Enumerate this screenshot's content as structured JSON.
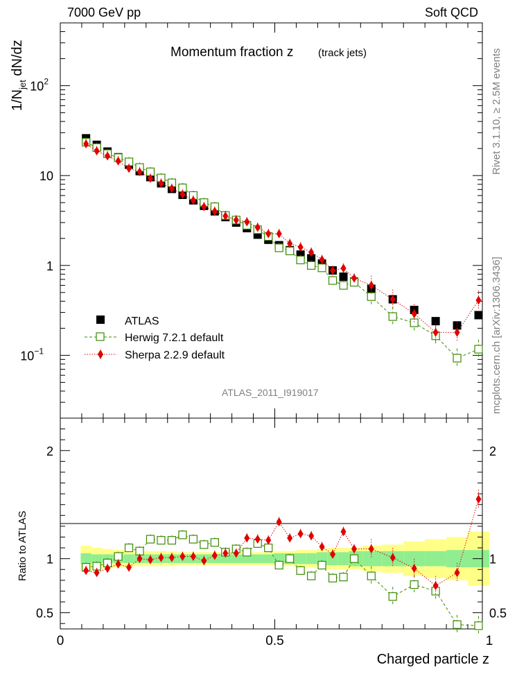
{
  "header": {
    "left": "7000 GeV pp",
    "right": "Soft QCD"
  },
  "side": {
    "rivet": "Rivet 3.1.10, ≥ 2.5M events",
    "mcplots": "mcplots.cern.ch [arXiv:1306.3436]"
  },
  "chart_data": [
    {
      "type": "scatter",
      "title": "Momentum fraction z",
      "subtitle": "(track jets)",
      "ylabel": "1/N_jet dN/dz",
      "yscale": "log",
      "ylim": [
        0.02,
        500
      ],
      "xlim": [
        0,
        1
      ],
      "yticks": [
        {
          "base": "10",
          "exp": "2",
          "value": 100
        },
        {
          "base": "10",
          "exp": "",
          "value": 10
        },
        {
          "base": "1",
          "exp": "",
          "value": 1
        },
        {
          "base": "10",
          "exp": "−1",
          "value": 0.1
        }
      ],
      "analysis_label": "ATLAS_2011_I919017",
      "legend_position": "bottom-left",
      "x": [
        0.06,
        0.085,
        0.11,
        0.135,
        0.16,
        0.185,
        0.21,
        0.235,
        0.26,
        0.285,
        0.31,
        0.335,
        0.36,
        0.385,
        0.41,
        0.435,
        0.46,
        0.485,
        0.51,
        0.535,
        0.56,
        0.585,
        0.61,
        0.635,
        0.66,
        0.685,
        0.725,
        0.775,
        0.825,
        0.875,
        0.925,
        0.975
      ],
      "series": [
        {
          "name": "ATLAS",
          "color": "#000000",
          "marker": "square-filled",
          "values": [
            26,
            22,
            18.5,
            16,
            13.2,
            11.2,
            9.6,
            8.2,
            7.1,
            6.1,
            5.3,
            4.6,
            4.0,
            3.45,
            3.0,
            2.6,
            2.2,
            1.93,
            1.68,
            1.48,
            1.32,
            1.2,
            1.05,
            0.88,
            0.75,
            0.66,
            0.55,
            0.42,
            0.32,
            0.24,
            0.215,
            0.28
          ]
        },
        {
          "name": "Herwig 7.2.1 default",
          "color": "#3a8a00",
          "marker": "square-open",
          "line": "dashed",
          "values": [
            23.5,
            20.5,
            17.5,
            15.8,
            14.2,
            12.3,
            11.0,
            9.4,
            8.3,
            7.3,
            6.0,
            5.0,
            4.5,
            3.6,
            3.2,
            2.8,
            2.5,
            2.1,
            1.57,
            1.45,
            1.15,
            1.0,
            0.94,
            0.68,
            0.6,
            0.65,
            0.45,
            0.27,
            0.23,
            0.165,
            0.093,
            0.117
          ]
        },
        {
          "name": "Sherpa 2.2.9 default",
          "color": "#e00000",
          "marker": "diamond-filled",
          "line": "dotted",
          "values": [
            22.5,
            18.8,
            16.5,
            14.5,
            12.0,
            11.0,
            9.3,
            8.2,
            7.2,
            6.2,
            5.3,
            4.5,
            4.0,
            3.55,
            3.2,
            3.05,
            2.65,
            2.25,
            2.25,
            1.75,
            1.6,
            1.4,
            1.16,
            0.88,
            0.93,
            0.72,
            0.6,
            0.42,
            0.29,
            0.18,
            0.18,
            0.41
          ]
        }
      ]
    },
    {
      "type": "scatter",
      "ylabel": "Ratio to ATLAS",
      "xlabel": "Charged particle z",
      "xlim": [
        0,
        1
      ],
      "ylim": [
        0.35,
        2.3
      ],
      "xticks": [
        "0",
        "0.5",
        "1"
      ],
      "yticks": [
        "0.5",
        "1",
        "2"
      ],
      "series": [
        {
          "name": "Herwig 7.2.1 default",
          "values": [
            0.92,
            0.93,
            0.96,
            1.02,
            1.1,
            1.07,
            1.18,
            1.17,
            1.17,
            1.22,
            1.18,
            1.13,
            1.15,
            1.06,
            1.09,
            1.06,
            1.14,
            1.1,
            0.94,
            1.0,
            0.89,
            0.84,
            0.94,
            0.82,
            0.83,
            1.0,
            0.84,
            0.65,
            0.76,
            0.7,
            0.39,
            0.38
          ]
        },
        {
          "name": "Sherpa 2.2.9 default",
          "values": [
            0.89,
            0.87,
            0.91,
            0.95,
            0.92,
            1.0,
            0.99,
            1.01,
            1.01,
            1.02,
            1.02,
            0.98,
            1.03,
            1.05,
            1.05,
            1.19,
            1.18,
            1.17,
            1.34,
            1.19,
            1.23,
            1.21,
            1.11,
            1.04,
            1.25,
            1.09,
            1.09,
            1.01,
            0.91,
            0.75,
            0.87,
            1.55
          ]
        }
      ],
      "band_inner": [
        0.05,
        0.04,
        0.04,
        0.04,
        0.04,
        0.04,
        0.04,
        0.04,
        0.04,
        0.04,
        0.04,
        0.04,
        0.04,
        0.04,
        0.04,
        0.04,
        0.04,
        0.04,
        0.05,
        0.05,
        0.05,
        0.05,
        0.06,
        0.06,
        0.06,
        0.07,
        0.07,
        0.07,
        0.07,
        0.07,
        0.08,
        0.08
      ],
      "band_outer": [
        0.12,
        0.1,
        0.09,
        0.08,
        0.08,
        0.07,
        0.07,
        0.07,
        0.07,
        0.06,
        0.06,
        0.06,
        0.06,
        0.06,
        0.06,
        0.06,
        0.06,
        0.06,
        0.07,
        0.07,
        0.08,
        0.08,
        0.09,
        0.1,
        0.1,
        0.1,
        0.12,
        0.13,
        0.16,
        0.18,
        0.2,
        0.25
      ]
    }
  ]
}
